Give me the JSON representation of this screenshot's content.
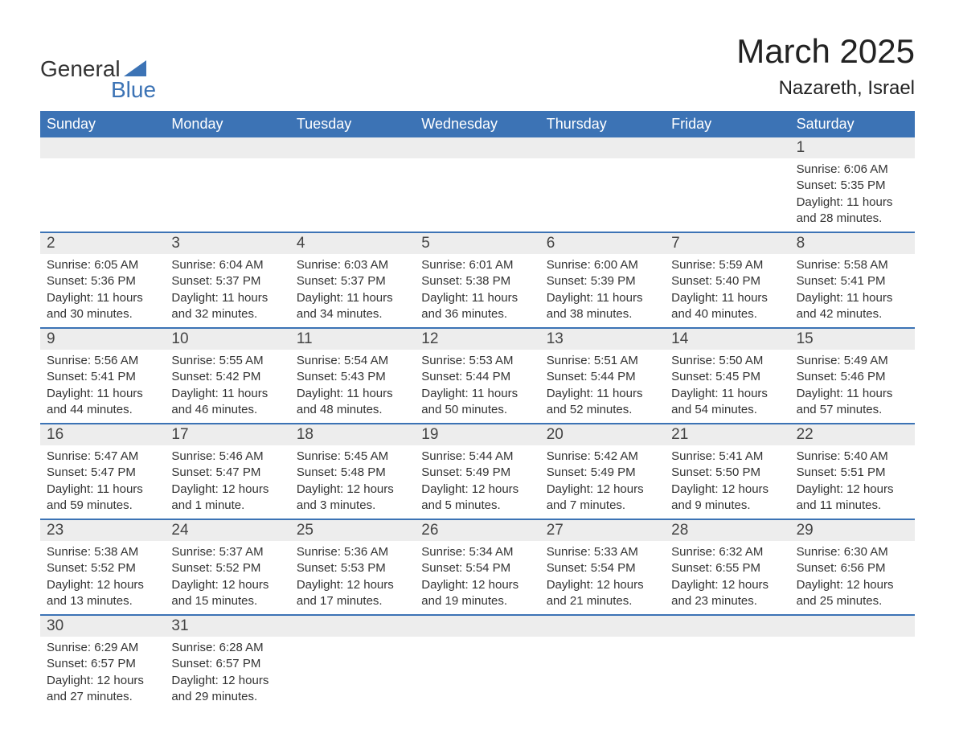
{
  "logo": {
    "line1": "General",
    "line2": "Blue",
    "icon_color": "#3C73B5"
  },
  "title": "March 2025",
  "location": "Nazareth, Israel",
  "colors": {
    "header_bg": "#3C73B5",
    "header_text": "#ffffff",
    "daynum_bg": "#EDEDED",
    "text": "#333333",
    "week_border": "#3C73B5",
    "background": "#ffffff"
  },
  "typography": {
    "title_fontsize": 42,
    "location_fontsize": 24,
    "header_fontsize": 18,
    "daynum_fontsize": 19,
    "detail_fontsize": 15
  },
  "day_headers": [
    "Sunday",
    "Monday",
    "Tuesday",
    "Wednesday",
    "Thursday",
    "Friday",
    "Saturday"
  ],
  "weeks": [
    [
      {
        "empty": true
      },
      {
        "empty": true
      },
      {
        "empty": true
      },
      {
        "empty": true
      },
      {
        "empty": true
      },
      {
        "empty": true
      },
      {
        "day": "1",
        "sunrise": "Sunrise: 6:06 AM",
        "sunset": "Sunset: 5:35 PM",
        "daylight1": "Daylight: 11 hours",
        "daylight2": "and 28 minutes."
      }
    ],
    [
      {
        "day": "2",
        "sunrise": "Sunrise: 6:05 AM",
        "sunset": "Sunset: 5:36 PM",
        "daylight1": "Daylight: 11 hours",
        "daylight2": "and 30 minutes."
      },
      {
        "day": "3",
        "sunrise": "Sunrise: 6:04 AM",
        "sunset": "Sunset: 5:37 PM",
        "daylight1": "Daylight: 11 hours",
        "daylight2": "and 32 minutes."
      },
      {
        "day": "4",
        "sunrise": "Sunrise: 6:03 AM",
        "sunset": "Sunset: 5:37 PM",
        "daylight1": "Daylight: 11 hours",
        "daylight2": "and 34 minutes."
      },
      {
        "day": "5",
        "sunrise": "Sunrise: 6:01 AM",
        "sunset": "Sunset: 5:38 PM",
        "daylight1": "Daylight: 11 hours",
        "daylight2": "and 36 minutes."
      },
      {
        "day": "6",
        "sunrise": "Sunrise: 6:00 AM",
        "sunset": "Sunset: 5:39 PM",
        "daylight1": "Daylight: 11 hours",
        "daylight2": "and 38 minutes."
      },
      {
        "day": "7",
        "sunrise": "Sunrise: 5:59 AM",
        "sunset": "Sunset: 5:40 PM",
        "daylight1": "Daylight: 11 hours",
        "daylight2": "and 40 minutes."
      },
      {
        "day": "8",
        "sunrise": "Sunrise: 5:58 AM",
        "sunset": "Sunset: 5:41 PM",
        "daylight1": "Daylight: 11 hours",
        "daylight2": "and 42 minutes."
      }
    ],
    [
      {
        "day": "9",
        "sunrise": "Sunrise: 5:56 AM",
        "sunset": "Sunset: 5:41 PM",
        "daylight1": "Daylight: 11 hours",
        "daylight2": "and 44 minutes."
      },
      {
        "day": "10",
        "sunrise": "Sunrise: 5:55 AM",
        "sunset": "Sunset: 5:42 PM",
        "daylight1": "Daylight: 11 hours",
        "daylight2": "and 46 minutes."
      },
      {
        "day": "11",
        "sunrise": "Sunrise: 5:54 AM",
        "sunset": "Sunset: 5:43 PM",
        "daylight1": "Daylight: 11 hours",
        "daylight2": "and 48 minutes."
      },
      {
        "day": "12",
        "sunrise": "Sunrise: 5:53 AM",
        "sunset": "Sunset: 5:44 PM",
        "daylight1": "Daylight: 11 hours",
        "daylight2": "and 50 minutes."
      },
      {
        "day": "13",
        "sunrise": "Sunrise: 5:51 AM",
        "sunset": "Sunset: 5:44 PM",
        "daylight1": "Daylight: 11 hours",
        "daylight2": "and 52 minutes."
      },
      {
        "day": "14",
        "sunrise": "Sunrise: 5:50 AM",
        "sunset": "Sunset: 5:45 PM",
        "daylight1": "Daylight: 11 hours",
        "daylight2": "and 54 minutes."
      },
      {
        "day": "15",
        "sunrise": "Sunrise: 5:49 AM",
        "sunset": "Sunset: 5:46 PM",
        "daylight1": "Daylight: 11 hours",
        "daylight2": "and 57 minutes."
      }
    ],
    [
      {
        "day": "16",
        "sunrise": "Sunrise: 5:47 AM",
        "sunset": "Sunset: 5:47 PM",
        "daylight1": "Daylight: 11 hours",
        "daylight2": "and 59 minutes."
      },
      {
        "day": "17",
        "sunrise": "Sunrise: 5:46 AM",
        "sunset": "Sunset: 5:47 PM",
        "daylight1": "Daylight: 12 hours",
        "daylight2": "and 1 minute."
      },
      {
        "day": "18",
        "sunrise": "Sunrise: 5:45 AM",
        "sunset": "Sunset: 5:48 PM",
        "daylight1": "Daylight: 12 hours",
        "daylight2": "and 3 minutes."
      },
      {
        "day": "19",
        "sunrise": "Sunrise: 5:44 AM",
        "sunset": "Sunset: 5:49 PM",
        "daylight1": "Daylight: 12 hours",
        "daylight2": "and 5 minutes."
      },
      {
        "day": "20",
        "sunrise": "Sunrise: 5:42 AM",
        "sunset": "Sunset: 5:49 PM",
        "daylight1": "Daylight: 12 hours",
        "daylight2": "and 7 minutes."
      },
      {
        "day": "21",
        "sunrise": "Sunrise: 5:41 AM",
        "sunset": "Sunset: 5:50 PM",
        "daylight1": "Daylight: 12 hours",
        "daylight2": "and 9 minutes."
      },
      {
        "day": "22",
        "sunrise": "Sunrise: 5:40 AM",
        "sunset": "Sunset: 5:51 PM",
        "daylight1": "Daylight: 12 hours",
        "daylight2": "and 11 minutes."
      }
    ],
    [
      {
        "day": "23",
        "sunrise": "Sunrise: 5:38 AM",
        "sunset": "Sunset: 5:52 PM",
        "daylight1": "Daylight: 12 hours",
        "daylight2": "and 13 minutes."
      },
      {
        "day": "24",
        "sunrise": "Sunrise: 5:37 AM",
        "sunset": "Sunset: 5:52 PM",
        "daylight1": "Daylight: 12 hours",
        "daylight2": "and 15 minutes."
      },
      {
        "day": "25",
        "sunrise": "Sunrise: 5:36 AM",
        "sunset": "Sunset: 5:53 PM",
        "daylight1": "Daylight: 12 hours",
        "daylight2": "and 17 minutes."
      },
      {
        "day": "26",
        "sunrise": "Sunrise: 5:34 AM",
        "sunset": "Sunset: 5:54 PM",
        "daylight1": "Daylight: 12 hours",
        "daylight2": "and 19 minutes."
      },
      {
        "day": "27",
        "sunrise": "Sunrise: 5:33 AM",
        "sunset": "Sunset: 5:54 PM",
        "daylight1": "Daylight: 12 hours",
        "daylight2": "and 21 minutes."
      },
      {
        "day": "28",
        "sunrise": "Sunrise: 6:32 AM",
        "sunset": "Sunset: 6:55 PM",
        "daylight1": "Daylight: 12 hours",
        "daylight2": "and 23 minutes."
      },
      {
        "day": "29",
        "sunrise": "Sunrise: 6:30 AM",
        "sunset": "Sunset: 6:56 PM",
        "daylight1": "Daylight: 12 hours",
        "daylight2": "and 25 minutes."
      }
    ],
    [
      {
        "day": "30",
        "sunrise": "Sunrise: 6:29 AM",
        "sunset": "Sunset: 6:57 PM",
        "daylight1": "Daylight: 12 hours",
        "daylight2": "and 27 minutes."
      },
      {
        "day": "31",
        "sunrise": "Sunrise: 6:28 AM",
        "sunset": "Sunset: 6:57 PM",
        "daylight1": "Daylight: 12 hours",
        "daylight2": "and 29 minutes."
      },
      {
        "empty": true
      },
      {
        "empty": true
      },
      {
        "empty": true
      },
      {
        "empty": true
      },
      {
        "empty": true
      }
    ]
  ]
}
